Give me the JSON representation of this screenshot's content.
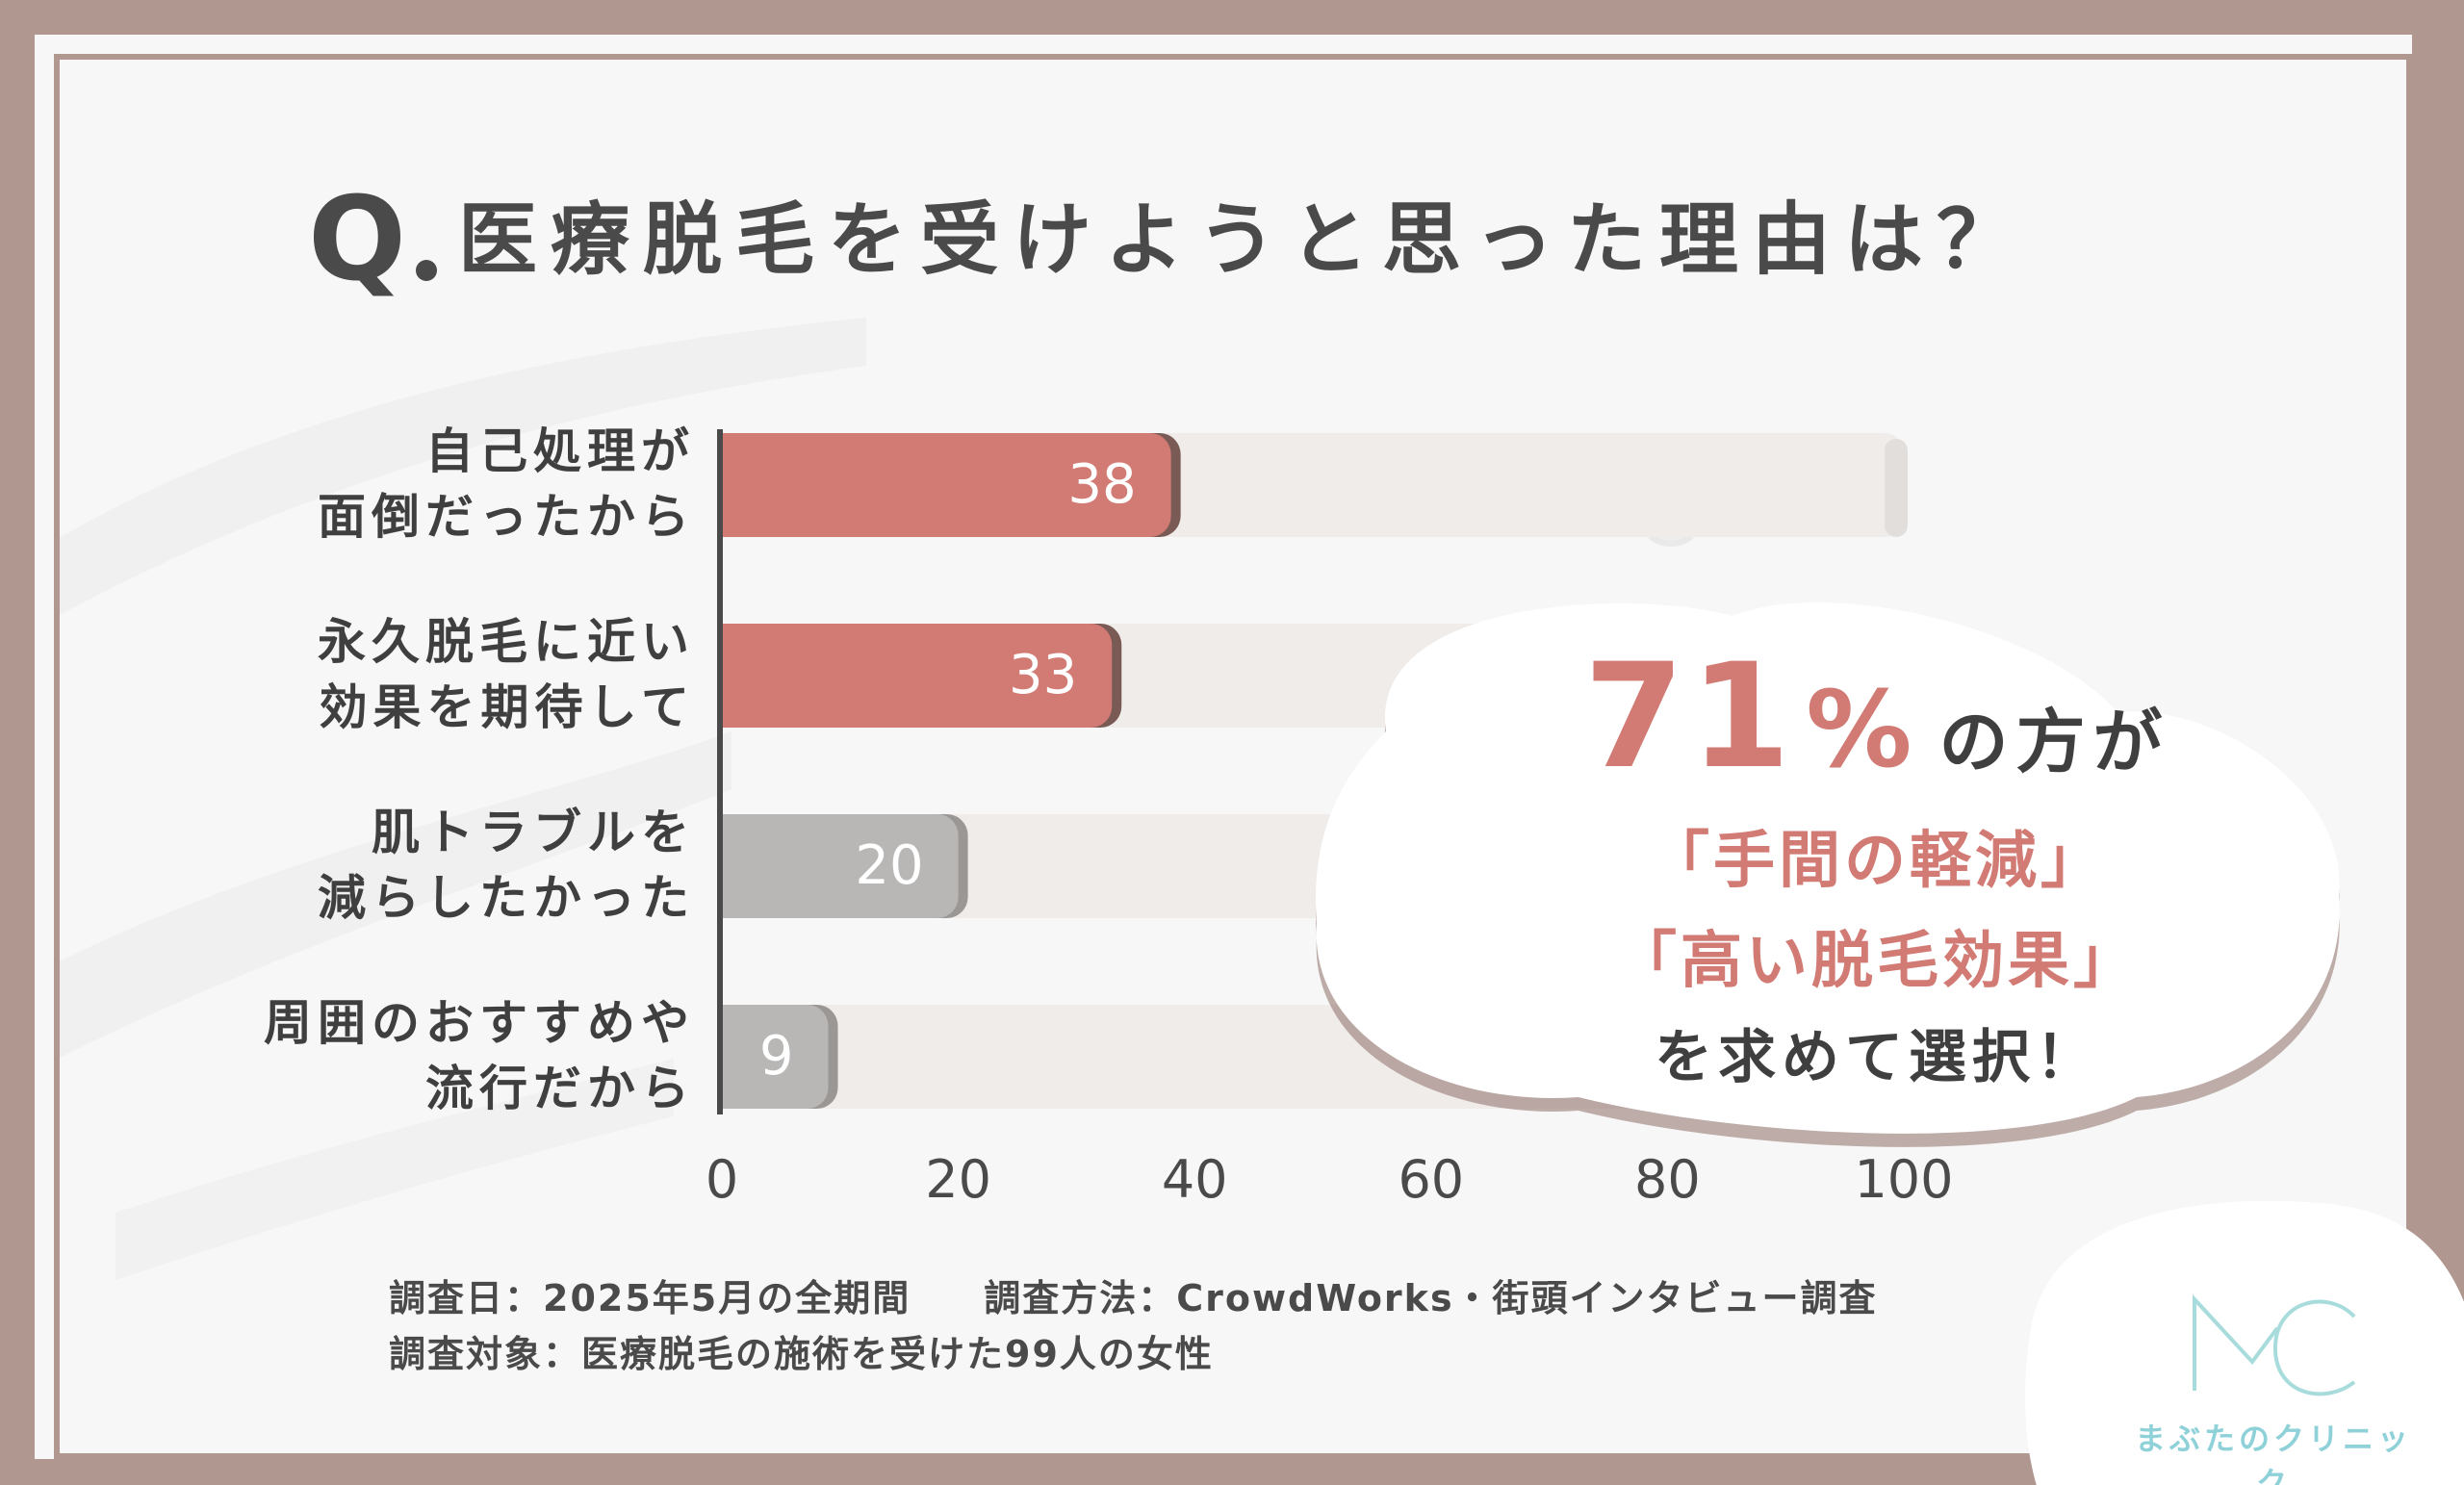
{
  "title": {
    "q": "Q",
    "text": "医療脱毛を受けようと思った理由は？"
  },
  "chart_data": {
    "type": "bar",
    "orientation": "horizontal",
    "categories": [
      "自己処理が\n面倒だったから",
      "永久脱毛に近い\n効果を期待して",
      "肌トラブルを\n減らしたかった",
      "周囲のおすすめや\n流行だから"
    ],
    "values": [
      38,
      33,
      20,
      9
    ],
    "xlim": [
      0,
      100
    ],
    "xticks": [
      "0",
      "20",
      "40",
      "60",
      "80",
      "100"
    ],
    "grid": false,
    "colors": {
      "highlight": "#d27a74",
      "normal": "#b9b7b6",
      "track": "#efecea"
    }
  },
  "callout": {
    "percent": "71",
    "percent_sign": "%",
    "suffix": "の方が",
    "line1": "「手間の軽減」",
    "line2": "「高い脱毛効果」",
    "line3": "を求めて選択！"
  },
  "survey": {
    "date": "調査日：2025年5月の全期間",
    "method": "調査方法：CrowdWorks・街頭インタビュー調査",
    "target": "調査対象：医療脱毛の施術を受けた99人の女性"
  },
  "logo": {
    "text": "まぶたのクリニック",
    "mark": "MC",
    "color": "#8fd1d9"
  }
}
